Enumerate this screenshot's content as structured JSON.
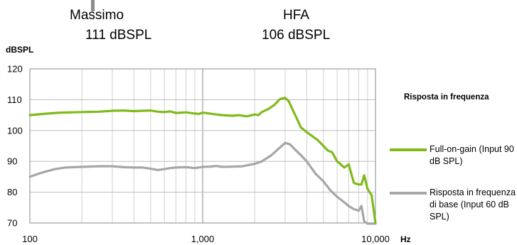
{
  "header": {
    "max_label": "Massimo",
    "max_value": "111  dBSPL",
    "hfa_label": "HFA",
    "hfa_value": "106  dBSPL"
  },
  "chart_data": {
    "type": "line",
    "title": "",
    "ylabel": "dBSPL",
    "xlabel": "Hz",
    "xscale": "log",
    "xlim": [
      100,
      10000
    ],
    "ylim": [
      70,
      120
    ],
    "yticks": [
      "70",
      "80",
      "90",
      "100",
      "110",
      "120"
    ],
    "xticks": [
      "100",
      "1,000",
      "10,000"
    ],
    "grid": true,
    "legend_title": "Risposta in frequenza",
    "legend_position": "right",
    "series": [
      {
        "name": "Full-on-gain (Input 90 dB SPL)",
        "color": "#7fba1b",
        "x": [
          100,
          120,
          150,
          200,
          250,
          300,
          350,
          400,
          450,
          500,
          550,
          600,
          650,
          700,
          800,
          900,
          950,
          1000,
          1100,
          1200,
          1300,
          1500,
          1600,
          1800,
          2000,
          2100,
          2200,
          2400,
          2600,
          2800,
          3000,
          3150,
          3300,
          3500,
          3700,
          4000,
          4300,
          4600,
          5000,
          5300,
          5600,
          6000,
          6300,
          6600,
          7000,
          7500,
          8000,
          8300,
          8600,
          9000,
          9500,
          10000
        ],
        "y": [
          105,
          105.4,
          105.8,
          106,
          106.1,
          106.4,
          106.5,
          106.3,
          106.4,
          106.5,
          106.1,
          106,
          106.2,
          105.7,
          105.9,
          105.5,
          105.4,
          105.8,
          105.5,
          105.2,
          105,
          104.8,
          105,
          104.6,
          105.2,
          105,
          106,
          107,
          108.3,
          110.2,
          110.6,
          109.5,
          107,
          104,
          101,
          99.5,
          98.2,
          97,
          95,
          93.5,
          93,
          90,
          89,
          88,
          89,
          83,
          82.5,
          82.5,
          85.5,
          81,
          79,
          70
        ]
      },
      {
        "name": "Risposta in frequenza di base (Input 60 dB SPL)",
        "color": "#a6a6a6",
        "x": [
          100,
          110,
          120,
          140,
          160,
          180,
          200,
          250,
          300,
          350,
          400,
          450,
          500,
          550,
          600,
          650,
          700,
          800,
          900,
          1000,
          1100,
          1200,
          1300,
          1500,
          1700,
          2000,
          2200,
          2500,
          2800,
          3000,
          3200,
          3400,
          3700,
          4000,
          4500,
          5000,
          5500,
          6000,
          6500,
          7000,
          7500,
          8000,
          8300,
          8600,
          9000,
          9500,
          10000
        ],
        "y": [
          85,
          85.8,
          86.5,
          87.5,
          88,
          88.1,
          88.2,
          88.4,
          88.4,
          88.1,
          88,
          88,
          87.6,
          87.2,
          87.5,
          87.8,
          88,
          88.1,
          87.8,
          88.2,
          88.3,
          88.5,
          88.2,
          88.3,
          88.4,
          89.2,
          90,
          92,
          94.5,
          96,
          95.5,
          94,
          92,
          90,
          86,
          83.5,
          80.5,
          78.5,
          77,
          75.5,
          74.5,
          74,
          75.5,
          70.5,
          69.8,
          69.8,
          69.8
        ]
      }
    ]
  }
}
